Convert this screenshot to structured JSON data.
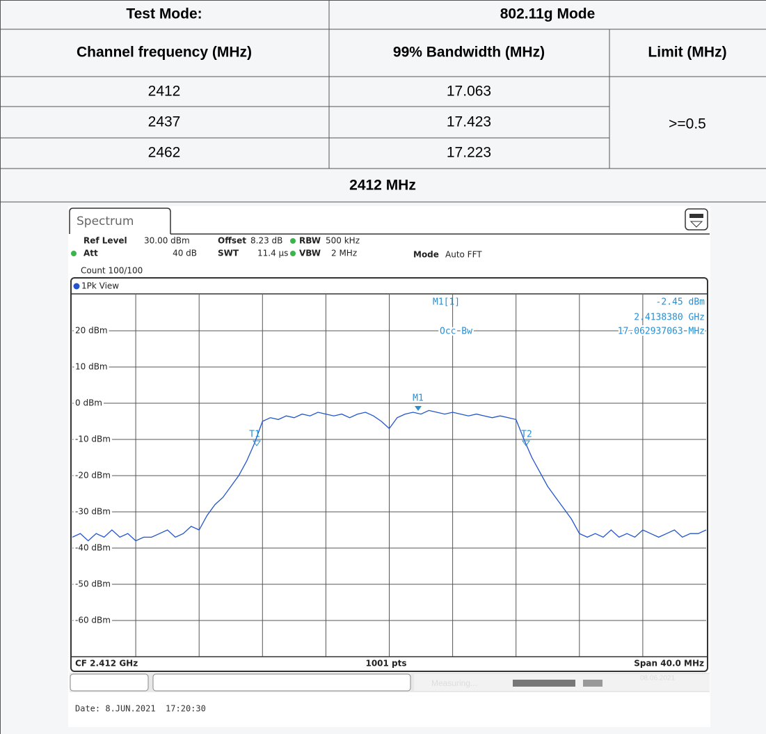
{
  "table": {
    "header": [
      "Test Mode:",
      "802.11g Mode"
    ],
    "columns": [
      "Channel frequency (MHz)",
      "99% Bandwidth (MHz)",
      "Limit (MHz)"
    ],
    "rows": [
      [
        "2412",
        "17.063"
      ],
      [
        "2437",
        "17.423"
      ],
      [
        "2462",
        "17.223"
      ]
    ],
    "limit": ">=0.5"
  },
  "plot_title": "2412 MHz",
  "spectrum": {
    "tab": "Spectrum",
    "settings": {
      "ref_level": {
        "label": "Ref Level",
        "value": "30.00 dBm"
      },
      "offset": {
        "label": "Offset",
        "value": "8.23 dB"
      },
      "rbw": {
        "label": "RBW",
        "value": "500 kHz"
      },
      "att": {
        "label": "Att",
        "value": "40 dB"
      },
      "swt": {
        "label": "SWT",
        "value": "11.4 µs"
      },
      "vbw": {
        "label": "VBW",
        "value": "2 MHz"
      },
      "mode": {
        "label": "Mode",
        "value": "Auto FFT"
      },
      "count": "Count 100/100"
    },
    "view": "1Pk View",
    "marker_info": {
      "name": "M1[1]",
      "level": "-2.45 dBm",
      "frequency": "2.4138380 GHz",
      "function": "Occ Bw",
      "result": "17.062937063 MHz"
    },
    "markers": [
      "M1",
      "T1",
      "T2"
    ],
    "footer": {
      "cf": "CF 2.412 GHz",
      "points": "1001 pts",
      "span": "Span 40.0 MHz",
      "status": "Measuring...",
      "status_date": "08.06.2021"
    },
    "date": "Date: 8.JUN.2021  17:20:30",
    "chart": {
      "type": "line",
      "color": "#2255cc",
      "ylim": [
        -70,
        30
      ],
      "yticks": [
        {
          "value": 20,
          "label": "20 dBm"
        },
        {
          "value": 10,
          "label": "10 dBm"
        },
        {
          "value": 0,
          "label": "0 dBm"
        },
        {
          "value": -10,
          "label": "-10 dBm"
        },
        {
          "value": -20,
          "label": "-20 dBm"
        },
        {
          "value": -30,
          "label": "-30 dBm"
        },
        {
          "value": -40,
          "label": "-40 dBm"
        },
        {
          "value": -50,
          "label": "-50 dBm"
        },
        {
          "value": -60,
          "label": "-60 dBm"
        }
      ],
      "values": [
        -37,
        -36,
        -38,
        -36,
        -37,
        -35,
        -37,
        -36,
        -38,
        -37,
        -37,
        -36,
        -35,
        -37,
        -36,
        -34,
        -35,
        -31,
        -28,
        -26,
        -23,
        -20,
        -16,
        -11,
        -5,
        -4,
        -4.5,
        -3.5,
        -4,
        -3,
        -3.5,
        -2.5,
        -3,
        -3.5,
        -3,
        -4,
        -3,
        -2.5,
        -3.5,
        -5,
        -7,
        -4,
        -3,
        -2.5,
        -3,
        -2,
        -2.5,
        -3,
        -2.5,
        -3,
        -3.5,
        -3,
        -3.5,
        -4,
        -3.5,
        -4,
        -4.5,
        -10,
        -15,
        -19,
        -23,
        -26,
        -29,
        -32,
        -36,
        -37,
        -36,
        -37,
        -35,
        -37,
        -36,
        -37,
        -35,
        -36,
        -37,
        -36,
        -35,
        -37,
        -36,
        -36,
        -35
      ]
    }
  }
}
